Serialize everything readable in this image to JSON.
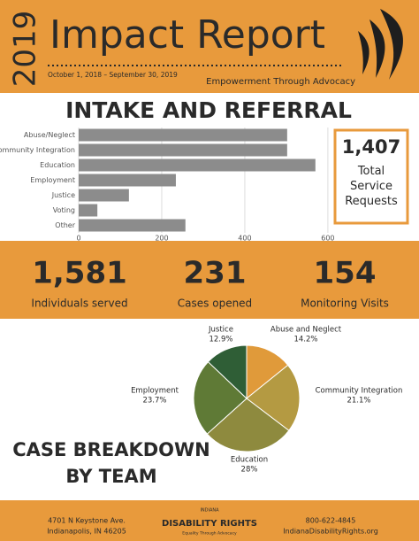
{
  "header": {
    "year": "2019",
    "title": "Impact Report",
    "dates": "October 1, 2018 – September 30, 2019",
    "tagline": "Empowerment Through Advocacy"
  },
  "intake": {
    "heading": "INTAKE AND REFERRAL",
    "total": "1,407",
    "total_label": "Total Service Requests"
  },
  "stats": [
    {
      "value": "1,581",
      "label": "Individuals served"
    },
    {
      "value": "231",
      "label": "Cases opened"
    },
    {
      "value": "154",
      "label": "Monitoring Visits"
    }
  ],
  "breakdown": {
    "heading_line1": "CASE BREAKDOWN",
    "heading_line2": "BY TEAM"
  },
  "chart_data": [
    {
      "type": "bar",
      "orientation": "horizontal",
      "categories": [
        "Abuse/Neglect",
        "Community Integration",
        "Education",
        "Employment",
        "Justice",
        "Voting",
        "Other"
      ],
      "values": [
        502,
        502,
        570,
        234,
        121,
        45,
        257
      ],
      "color": "#8c8c8c",
      "xlim": [
        0,
        630
      ],
      "xticks": [
        0,
        200,
        400,
        600
      ],
      "grid": true
    },
    {
      "type": "pie",
      "categories": [
        "Abuse and Neglect",
        "Community Integration",
        "Education",
        "Employment",
        "Justice"
      ],
      "values": [
        14.2,
        21.1,
        28,
        23.7,
        12.9
      ],
      "value_labels": [
        "14.2%",
        "21.1%",
        "28%",
        "23.7%",
        "12.9%"
      ],
      "colors": [
        "#e09a3a",
        "#b49a42",
        "#8e8a3e",
        "#5f7a36",
        "#2f5e36"
      ]
    }
  ],
  "footer": {
    "address1": "4701 N Keystone Ave.",
    "address2": "Indianapolis, IN 46205",
    "logo_top": "INDIANA",
    "logo_name": "DISABILITY RIGHTS",
    "logo_sub": "Equality Through Advocacy",
    "phone": "800-622-4845",
    "web": "IndianaDisabilityRights.org"
  }
}
